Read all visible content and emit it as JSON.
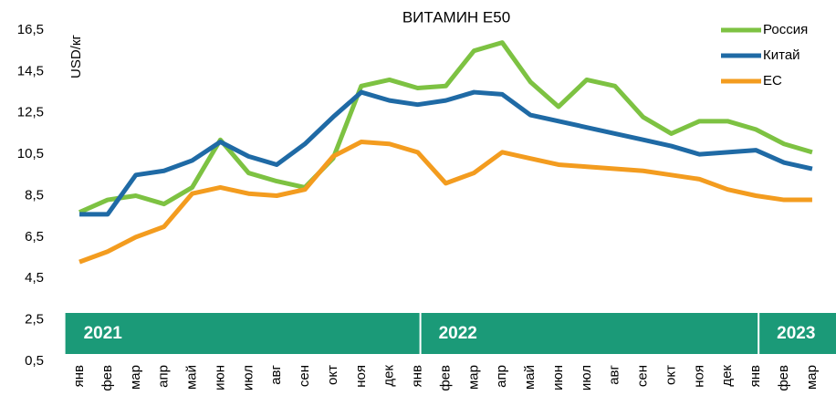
{
  "chart_data": {
    "type": "line",
    "title": "ВИТАМИН Е50",
    "y_label": "USD/кг",
    "categories": [
      "янв",
      "фев",
      "мар",
      "апр",
      "май",
      "июн",
      "июл",
      "авг",
      "сен",
      "окт",
      "ноя",
      "дек",
      "янв",
      "фев",
      "мар",
      "апр",
      "май",
      "июн",
      "июл",
      "авг",
      "сен",
      "окт",
      "ноя",
      "дек",
      "янв",
      "фев",
      "мар"
    ],
    "year_bands": [
      "2021",
      "2022",
      "2023"
    ],
    "series": [
      {
        "name": "Россия",
        "color": "#7dc242",
        "values": [
          7.7,
          8.3,
          8.5,
          8.1,
          8.9,
          11.2,
          9.6,
          9.2,
          8.9,
          10.3,
          13.8,
          14.1,
          13.7,
          13.8,
          15.5,
          15.9,
          14.0,
          12.8,
          14.1,
          13.8,
          12.3,
          11.5,
          12.1,
          12.1,
          11.7,
          11.0,
          10.6
        ]
      },
      {
        "name": "Китай",
        "color": "#1f6aa5",
        "values": [
          7.6,
          7.6,
          9.5,
          9.7,
          10.2,
          11.1,
          10.4,
          10.0,
          11.0,
          12.3,
          13.5,
          13.1,
          12.9,
          13.1,
          13.5,
          13.4,
          12.4,
          12.1,
          11.8,
          11.5,
          11.2,
          10.9,
          10.5,
          10.6,
          10.7,
          10.1,
          9.8
        ]
      },
      {
        "name": "ЕС",
        "color": "#f39c1f",
        "values": [
          5.3,
          5.8,
          6.5,
          7.0,
          8.6,
          8.9,
          8.6,
          8.5,
          8.8,
          10.4,
          11.1,
          11.0,
          10.6,
          9.1,
          9.6,
          10.6,
          10.3,
          10.0,
          9.9,
          9.8,
          9.7,
          9.5,
          9.3,
          8.8,
          8.5,
          8.3,
          8.3
        ]
      }
    ],
    "ylim": [
      0.5,
      16.5
    ],
    "yticks": [
      {
        "value": 0.5,
        "label": "0,5"
      },
      {
        "value": 2.5,
        "label": "2,5"
      },
      {
        "value": 4.5,
        "label": "4,5"
      },
      {
        "value": 6.5,
        "label": "6,5"
      },
      {
        "value": 8.5,
        "label": "8,5"
      },
      {
        "value": 10.5,
        "label": "10,5"
      },
      {
        "value": 12.5,
        "label": "12,5"
      },
      {
        "value": 14.5,
        "label": "14,5"
      },
      {
        "value": 16.5,
        "label": "16,5"
      }
    ],
    "legend": "top-right",
    "grid": false
  }
}
